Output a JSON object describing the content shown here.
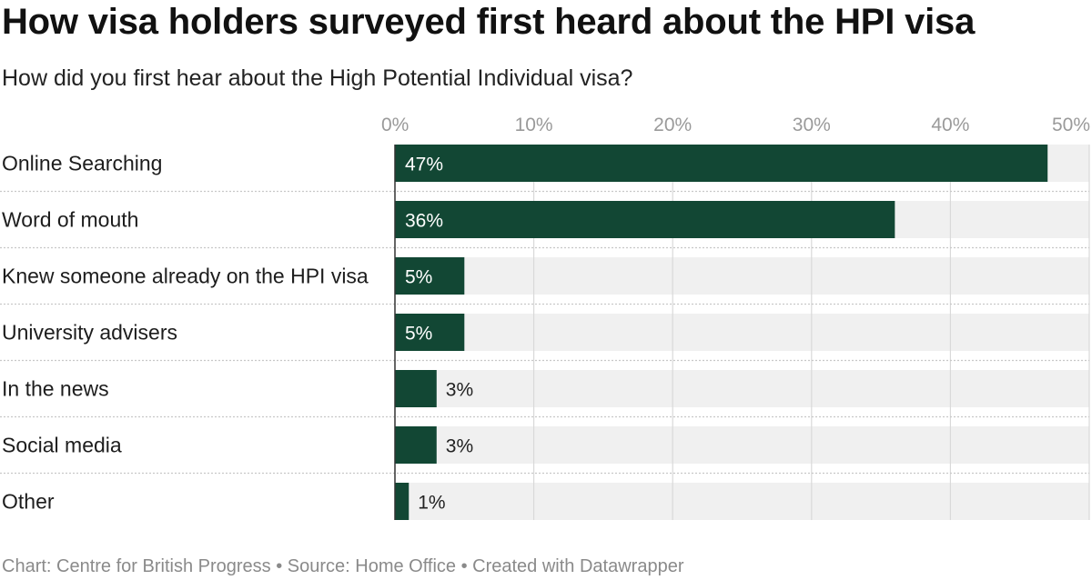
{
  "header": {
    "title": "How visa holders surveyed first heard about the HPI visa",
    "subtitle": "How did you first hear about the High Potential Individual visa?"
  },
  "footer": {
    "source": "Chart: Centre for British Progress • Source: Home Office • Created with Datawrapper"
  },
  "colors": {
    "bar": "#124734",
    "track": "#f0f0f0",
    "grid": "#d9d9d9",
    "separator": "#c8c8c8",
    "tick_text": "#9a9a9a",
    "axis": "#333333"
  },
  "chart_data": {
    "type": "bar",
    "orientation": "horizontal",
    "title": "How visa holders surveyed first heard about the HPI visa",
    "subtitle": "How did you first hear about the High Potential Individual visa?",
    "categories": [
      "Online Searching",
      "Word of mouth",
      "Knew someone already on the HPI visa",
      "University advisers",
      "In the news",
      "Social media",
      "Other"
    ],
    "values": [
      47,
      36,
      5,
      5,
      3,
      3,
      1
    ],
    "value_labels": [
      "47%",
      "36%",
      "5%",
      "5%",
      "3%",
      "3%",
      "1%"
    ],
    "xlim": [
      0,
      50
    ],
    "xticks": [
      0,
      10,
      20,
      30,
      40,
      50
    ],
    "xtick_labels": [
      "0%",
      "10%",
      "20%",
      "30%",
      "40%",
      "50%"
    ],
    "xlabel": "",
    "ylabel": "",
    "grid": true,
    "legend": "none"
  }
}
